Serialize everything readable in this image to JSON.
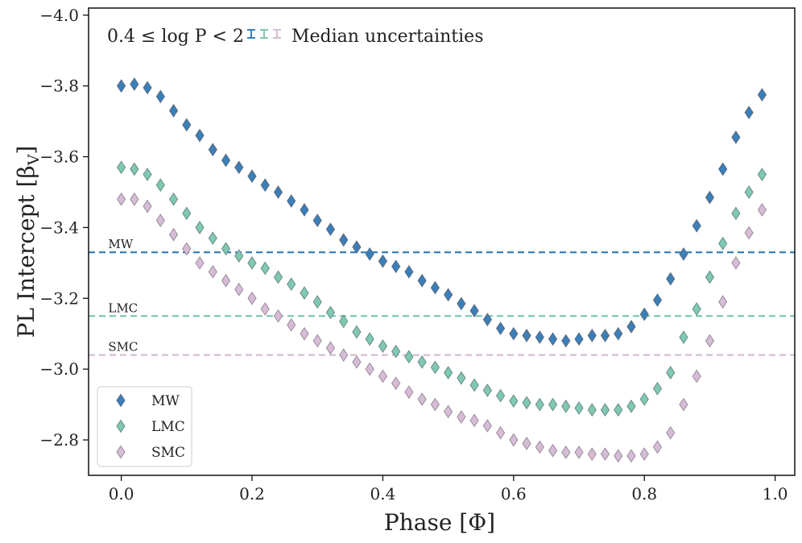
{
  "chart_data": {
    "type": "scatter",
    "title": "",
    "xlabel": "Phase [Φ]",
    "ylabel": "PL Intercept [β",
    "ylabel_sub": "V",
    "ylabel_close": "]",
    "xlim": [
      -0.05,
      1.03
    ],
    "ylim": [
      -2.7,
      -4.02
    ],
    "xticks": [
      0.0,
      0.2,
      0.4,
      0.6,
      0.8,
      1.0
    ],
    "xtick_labels": [
      "0.0",
      "0.2",
      "0.4",
      "0.6",
      "0.8",
      "1.0"
    ],
    "yticks": [
      -4.0,
      -3.8,
      -3.6,
      -3.4,
      -3.2,
      -3.0,
      -2.8
    ],
    "ytick_labels": [
      "−4.0",
      "−3.8",
      "−3.6",
      "−3.4",
      "−3.2",
      "−3.0",
      "−2.8"
    ],
    "annotation": "0.4 ≤ log P < 2",
    "uncertainty_label": "Median uncertainties",
    "legend_position": "lower-left",
    "phase": [
      0.0,
      0.02,
      0.04,
      0.06,
      0.08,
      0.1,
      0.12,
      0.14,
      0.16,
      0.18,
      0.2,
      0.22,
      0.24,
      0.26,
      0.28,
      0.3,
      0.32,
      0.34,
      0.36,
      0.38,
      0.4,
      0.42,
      0.44,
      0.46,
      0.48,
      0.5,
      0.52,
      0.54,
      0.56,
      0.58,
      0.6,
      0.62,
      0.64,
      0.66,
      0.68,
      0.7,
      0.72,
      0.74,
      0.76,
      0.78,
      0.8,
      0.82,
      0.84,
      0.86,
      0.88,
      0.9,
      0.92,
      0.94,
      0.96,
      0.98
    ],
    "series": [
      {
        "name": "MW",
        "color": "#3a7fb8",
        "edge": "#5a6a80",
        "values": [
          -3.8,
          -3.805,
          -3.795,
          -3.77,
          -3.73,
          -3.69,
          -3.66,
          -3.62,
          -3.59,
          -3.57,
          -3.545,
          -3.52,
          -3.5,
          -3.475,
          -3.45,
          -3.42,
          -3.395,
          -3.365,
          -3.345,
          -3.325,
          -3.305,
          -3.29,
          -3.275,
          -3.25,
          -3.23,
          -3.21,
          -3.185,
          -3.165,
          -3.14,
          -3.115,
          -3.1,
          -3.095,
          -3.09,
          -3.085,
          -3.08,
          -3.085,
          -3.095,
          -3.095,
          -3.1,
          -3.12,
          -3.155,
          -3.195,
          -3.255,
          -3.325,
          -3.405,
          -3.485,
          -3.565,
          -3.655,
          -3.725,
          -3.775
        ]
      },
      {
        "name": "LMC",
        "color": "#7fc8b4",
        "edge": "#6a8c86",
        "values": [
          -3.57,
          -3.565,
          -3.55,
          -3.52,
          -3.48,
          -3.44,
          -3.4,
          -3.37,
          -3.34,
          -3.32,
          -3.3,
          -3.285,
          -3.26,
          -3.24,
          -3.215,
          -3.19,
          -3.16,
          -3.135,
          -3.105,
          -3.085,
          -3.065,
          -3.05,
          -3.035,
          -3.02,
          -3.005,
          -2.99,
          -2.975,
          -2.955,
          -2.94,
          -2.925,
          -2.91,
          -2.905,
          -2.9,
          -2.9,
          -2.895,
          -2.89,
          -2.885,
          -2.885,
          -2.885,
          -2.895,
          -2.915,
          -2.945,
          -2.99,
          -3.09,
          -3.17,
          -3.26,
          -3.355,
          -3.44,
          -3.5,
          -3.55
        ]
      },
      {
        "name": "SMC",
        "color": "#d6bcd6",
        "edge": "#9a8c9a",
        "values": [
          -3.48,
          -3.48,
          -3.46,
          -3.42,
          -3.38,
          -3.34,
          -3.3,
          -3.275,
          -3.25,
          -3.225,
          -3.2,
          -3.17,
          -3.15,
          -3.125,
          -3.1,
          -3.08,
          -3.06,
          -3.04,
          -3.02,
          -3.0,
          -2.98,
          -2.96,
          -2.935,
          -2.915,
          -2.9,
          -2.88,
          -2.865,
          -2.855,
          -2.84,
          -2.82,
          -2.8,
          -2.79,
          -2.78,
          -2.77,
          -2.765,
          -2.765,
          -2.76,
          -2.76,
          -2.755,
          -2.755,
          -2.76,
          -2.78,
          -2.82,
          -2.9,
          -2.98,
          -3.08,
          -3.19,
          -3.3,
          -3.385,
          -3.45
        ]
      }
    ],
    "reference_lines": [
      {
        "label": "MW",
        "value": -3.33,
        "color": "#2f7ab8"
      },
      {
        "label": "LMC",
        "value": -3.15,
        "color": "#7fc8b4"
      },
      {
        "label": "SMC",
        "value": -3.04,
        "color": "#d6bcd6"
      }
    ]
  }
}
